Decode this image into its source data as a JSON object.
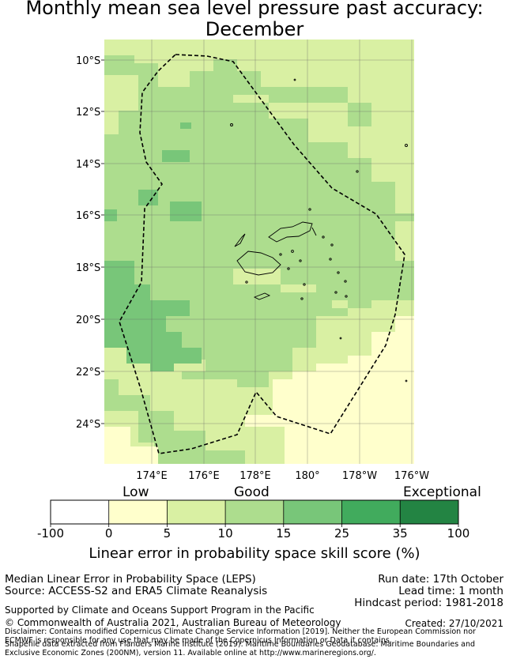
{
  "title_line1": "Monthly mean sea level pressure past accuracy:",
  "title_line2": "December",
  "map": {
    "lat_ticks": [
      "10°S",
      "12°S",
      "14°S",
      "16°S",
      "18°S",
      "20°S",
      "22°S",
      "24°S"
    ],
    "lon_ticks": [
      "174°E",
      "176°E",
      "178°E",
      "180°",
      "178°W",
      "176°W"
    ]
  },
  "colorbar": {
    "categories": [
      "Low",
      "Good",
      "Exceptional"
    ],
    "ticks": [
      "-100",
      "0",
      "5",
      "10",
      "15",
      "25",
      "35",
      "100"
    ],
    "colors": [
      "#ffffff",
      "#ffffcc",
      "#d9f0a3",
      "#addd8e",
      "#78c679",
      "#41ab5d",
      "#238443"
    ],
    "label": "Linear error in probability space skill score (%)"
  },
  "info": {
    "method": "Median Linear Error in Probability Space (LEPS)",
    "source": "Source: ACCESS-S2 and ERA5 Climate Reanalysis",
    "run_date": "Run date: 17th October",
    "lead_time": "Lead time: 1 month",
    "hindcast": "Hindcast period: 1981-2018",
    "support": "Supported by Climate and Oceans Support Program in the Pacific",
    "copyright": "© Commonwealth of Australia 2021, Australian Bureau of Meteorology",
    "created": "Created: 27/10/2021",
    "disclaimer1": "Disclaimer: Contains modified Copernicus Climate Change Service Information [2019]. Neither the European Commission nor ECMWF is responsible for any use that may be made of the Copernicus Information or Data it contains.",
    "disclaimer2": "Shapefile data extracted from Flanders Marine Institute (2019). Maritime Boundaries Geodatabase: Maritime Boundaries and Exclusive Economic Zones (200NM), version 11. Available online at http://www.marineregions.org/."
  }
}
